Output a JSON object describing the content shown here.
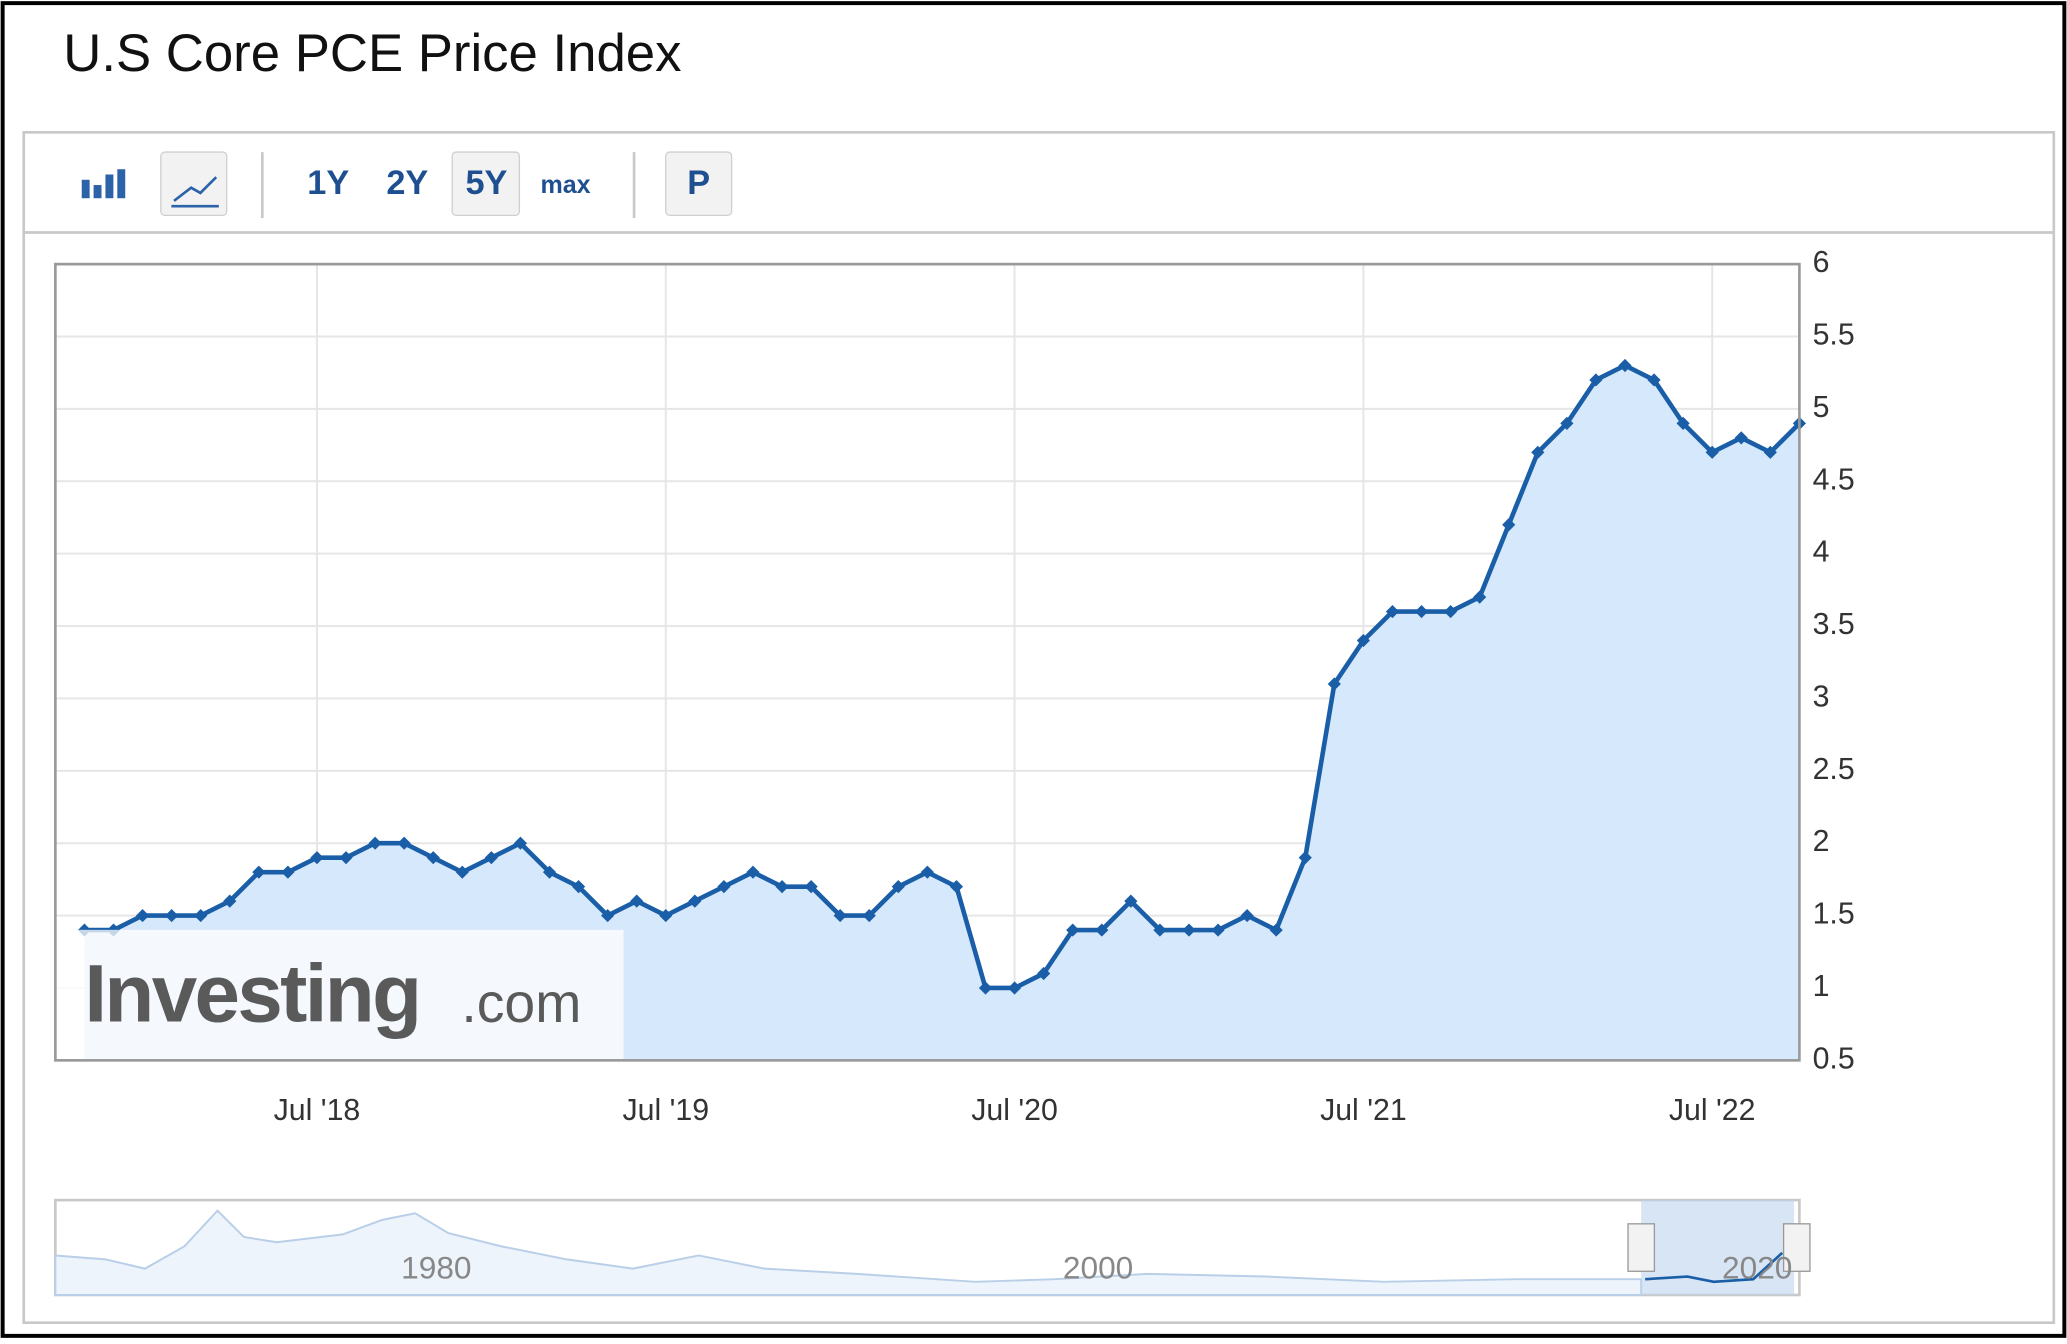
{
  "header": {
    "title": "U.S Core PCE Price Index"
  },
  "toolbar": {
    "ranges": [
      "1Y",
      "2Y",
      "5Y",
      "max"
    ],
    "print": "P"
  },
  "watermark": {
    "brand": "Investing",
    "suffix": ".com"
  },
  "navigator": {
    "labels": [
      "1980",
      "2000",
      "2020"
    ]
  },
  "chart_data": {
    "type": "line",
    "x": [
      "2017-11",
      "2017-12",
      "2018-01",
      "2018-02",
      "2018-03",
      "2018-04",
      "2018-05",
      "2018-06",
      "2018-07",
      "2018-08",
      "2018-09",
      "2018-10",
      "2018-11",
      "2018-12",
      "2019-01",
      "2019-02",
      "2019-03",
      "2019-04",
      "2019-05",
      "2019-06",
      "2019-07",
      "2019-08",
      "2019-09",
      "2019-10",
      "2019-11",
      "2019-12",
      "2020-01",
      "2020-02",
      "2020-03",
      "2020-04",
      "2020-05",
      "2020-06",
      "2020-07",
      "2020-08",
      "2020-09",
      "2020-10",
      "2020-11",
      "2020-12",
      "2021-01",
      "2021-02",
      "2021-03",
      "2021-04",
      "2021-05",
      "2021-06",
      "2021-07",
      "2021-08",
      "2021-09",
      "2021-10",
      "2021-11",
      "2021-12",
      "2022-01",
      "2022-02",
      "2022-03",
      "2022-04",
      "2022-05",
      "2022-06",
      "2022-07",
      "2022-08",
      "2022-09",
      "2022-10"
    ],
    "series": [
      {
        "color": "#1a5ea8",
        "fill": "#d6e8fb",
        "values": [
          1.4,
          1.4,
          1.5,
          1.5,
          1.5,
          1.6,
          1.8,
          1.8,
          1.9,
          1.9,
          2.0,
          2.0,
          1.9,
          1.8,
          1.9,
          2.0,
          1.8,
          1.7,
          1.5,
          1.6,
          1.5,
          1.6,
          1.7,
          1.8,
          1.7,
          1.7,
          1.5,
          1.5,
          1.7,
          1.8,
          1.7,
          1.0,
          1.0,
          1.1,
          1.4,
          1.4,
          1.6,
          1.4,
          1.4,
          1.4,
          1.5,
          1.4,
          1.9,
          3.1,
          3.4,
          3.6,
          3.6,
          3.6,
          3.7,
          4.2,
          4.7,
          4.9,
          5.2,
          5.3,
          5.2,
          4.9,
          4.7,
          4.8,
          4.7,
          4.9
        ]
      }
    ],
    "xlim": [
      "2017-10",
      "2022-10"
    ],
    "xticks": [
      {
        "value": "2018-07",
        "label": "Jul '18"
      },
      {
        "value": "2019-07",
        "label": "Jul '19"
      },
      {
        "value": "2020-07",
        "label": "Jul '20"
      },
      {
        "value": "2021-07",
        "label": "Jul '21"
      },
      {
        "value": "2022-07",
        "label": "Jul '22"
      }
    ],
    "ylim": [
      0.5,
      6
    ],
    "yticks": [
      0.5,
      1,
      1.5,
      2,
      2.5,
      3,
      3.5,
      4,
      4.5,
      5,
      5.5,
      6
    ],
    "grid": true
  }
}
